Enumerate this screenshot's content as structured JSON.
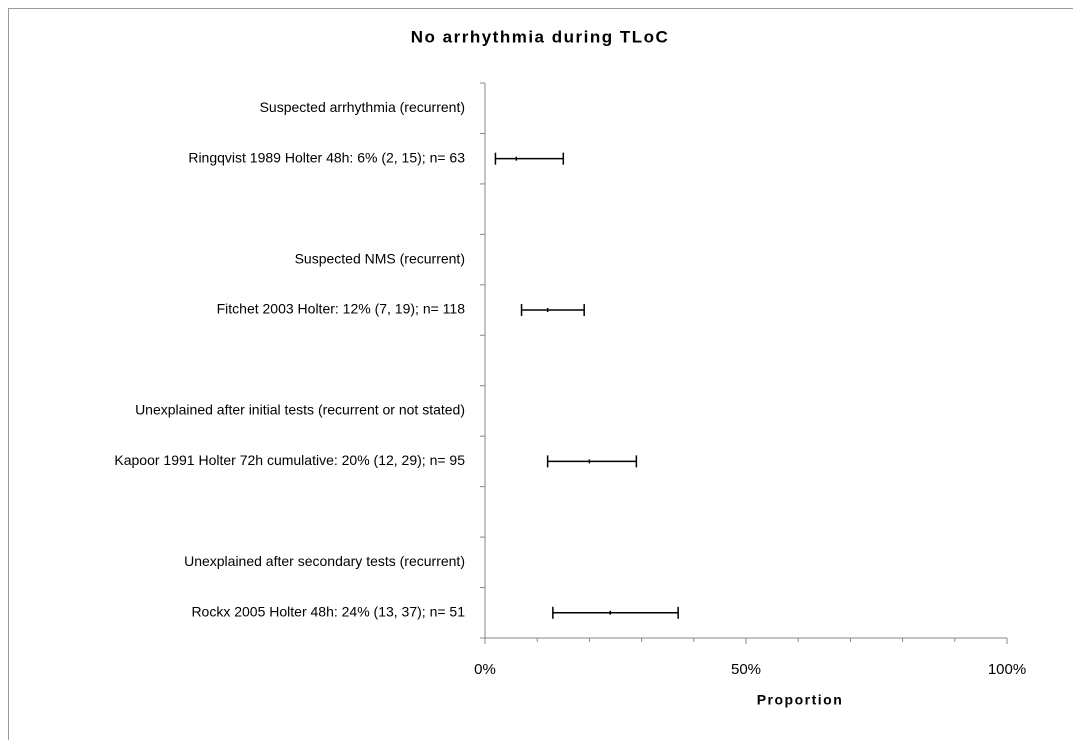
{
  "chart_data": {
    "type": "forest",
    "title": "No arrhythmia during TLoC",
    "x_label": "Proportion",
    "categories": [
      "Suspected arrhythmia (recurrent)",
      "Ringqvist 1989 Holter 48h: 6% (2, 15); n= 63",
      null,
      "Suspected NMS (recurrent)",
      "Fitchet 2003 Holter: 12% (7, 19); n= 118",
      null,
      "Unexplained after initial tests (recurrent or not stated)",
      "Kapoor 1991 Holter 72h cumulative: 20% (12, 29); n= 95",
      null,
      "Unexplained after secondary tests (recurrent)",
      "Rockx 2005 Holter 48h: 24% (13, 37); n= 51"
    ],
    "values": [
      null,
      6,
      null,
      null,
      12,
      null,
      null,
      20,
      null,
      null,
      24
    ],
    "lower": [
      null,
      2,
      null,
      null,
      7,
      null,
      null,
      12,
      null,
      null,
      13
    ],
    "upper": [
      null,
      15,
      null,
      null,
      19,
      null,
      null,
      29,
      null,
      null,
      37
    ],
    "color": "#000000",
    "xlim": [
      0,
      100
    ],
    "xticks": [
      {
        "value": 0,
        "label": "0%"
      },
      {
        "value": 50,
        "label": "50%"
      },
      {
        "value": 100,
        "label": "100%"
      }
    ],
    "xminor_ticks": [
      10,
      20,
      30,
      40,
      60,
      70,
      80,
      90
    ]
  }
}
